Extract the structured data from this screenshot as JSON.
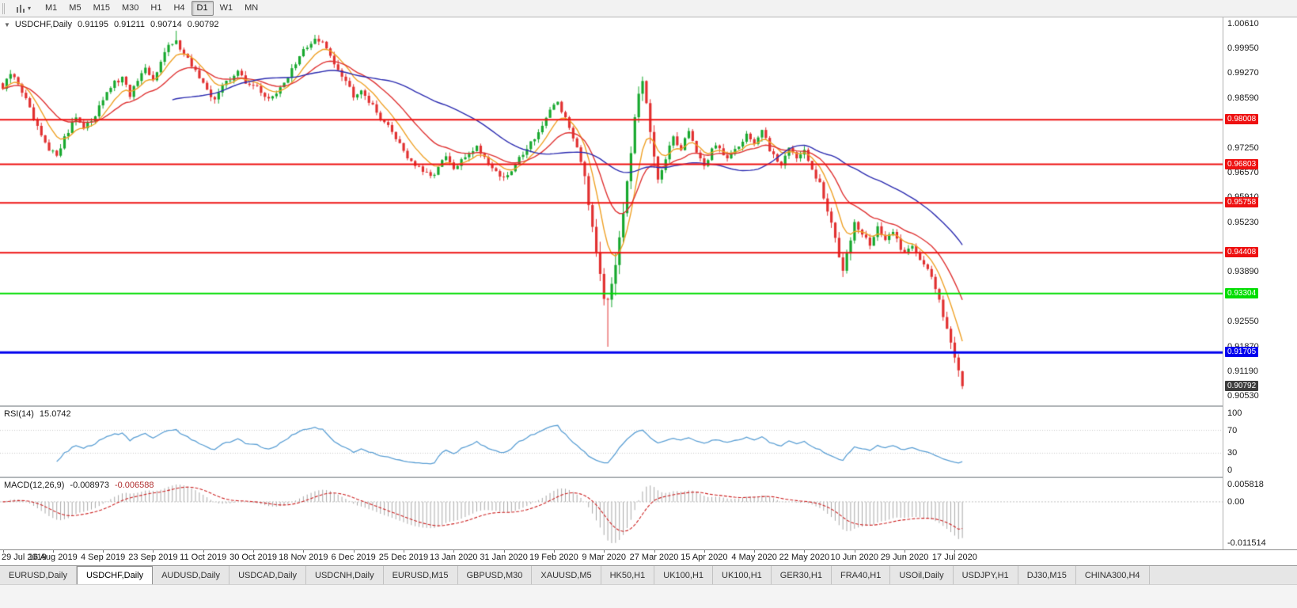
{
  "toolbar": {
    "timeframes": [
      "M1",
      "M5",
      "M15",
      "M30",
      "H1",
      "H4",
      "D1",
      "W1",
      "MN"
    ],
    "active_timeframe": "D1"
  },
  "chart": {
    "title": {
      "symbol": "USDCHF,Daily",
      "open": "0.91195",
      "high": "0.91211",
      "low": "0.90714",
      "close": "0.90792"
    },
    "price_axis": {
      "ticks": [
        "1.00610",
        "0.99950",
        "0.99270",
        "0.98590",
        "0.97250",
        "0.96570",
        "0.95910",
        "0.95230",
        "0.93890",
        "0.92550",
        "0.91870",
        "0.91190",
        "0.90530"
      ]
    },
    "date_axis": {
      "labels": [
        "29 Jul 2019",
        "16 Aug 2019",
        "4 Sep 2019",
        "23 Sep 2019",
        "11 Oct 2019",
        "30 Oct 2019",
        "18 Nov 2019",
        "6 Dec 2019",
        "25 Dec 2019",
        "13 Jan 2020",
        "31 Jan 2020",
        "19 Feb 2020",
        "9 Mar 2020",
        "27 Mar 2020",
        "15 Apr 2020",
        "4 May 2020",
        "22 May 2020",
        "10 Jun 2020",
        "29 Jun 2020",
        "17 Jul 2020"
      ]
    },
    "hlines": [
      {
        "label": "0.98008",
        "value": 0.98008,
        "color": "#ee1111",
        "width": 2
      },
      {
        "label": "0.96803",
        "value": 0.96803,
        "color": "#ee1111",
        "width": 2
      },
      {
        "label": "0.95758",
        "value": 0.95758,
        "color": "#ee1111",
        "width": 2
      },
      {
        "label": "0.94408",
        "value": 0.94408,
        "color": "#ee1111",
        "width": 2
      },
      {
        "label": "0.93304",
        "value": 0.93304,
        "color": "#00dd00",
        "width": 2
      },
      {
        "label": "0.91705",
        "value": 0.91705,
        "color": "#0000ee",
        "width": 3
      }
    ],
    "current_price": {
      "label": "0.90792",
      "value": 0.90792,
      "badge_color": "#3c3c3c"
    }
  },
  "indicators": {
    "rsi": {
      "title": "RSI(14)",
      "value": "15.0742",
      "axis_levels": [
        {
          "label": "100",
          "value": 100
        },
        {
          "label": "70",
          "value": 70
        },
        {
          "label": "30",
          "value": 30
        },
        {
          "label": "0",
          "value": 0
        }
      ]
    },
    "macd": {
      "title": "MACD(12,26,9)",
      "value_main": "-0.008973",
      "value_signal": "-0.006588",
      "axis_top": "0.005818",
      "axis_zero": "0.00",
      "axis_bottom": "-0.011514"
    }
  },
  "tabs": [
    {
      "label": "EURUSD,Daily",
      "active": false
    },
    {
      "label": "USDCHF,Daily",
      "active": true
    },
    {
      "label": "AUDUSD,Daily",
      "active": false
    },
    {
      "label": "USDCAD,Daily",
      "active": false
    },
    {
      "label": "USDCNH,Daily",
      "active": false
    },
    {
      "label": "EURUSD,M15",
      "active": false
    },
    {
      "label": "GBPUSD,M30",
      "active": false
    },
    {
      "label": "XAUUSD,M5",
      "active": false
    },
    {
      "label": "HK50,H1",
      "active": false
    },
    {
      "label": "UK100,H1",
      "active": false
    },
    {
      "label": "UK100,H1",
      "active": false
    },
    {
      "label": "GER30,H1",
      "active": false
    },
    {
      "label": "FRA40,H1",
      "active": false
    },
    {
      "label": "USOil,Daily",
      "active": false
    },
    {
      "label": "USDJPY,H1",
      "active": false
    },
    {
      "label": "DJ30,M15",
      "active": false
    },
    {
      "label": "CHINA300,H4",
      "active": false
    }
  ],
  "chart_data": {
    "type": "candlestick",
    "symbol": "USDCHF",
    "timeframe": "Daily",
    "candles_count": 250,
    "price_range": {
      "top": 1.0061,
      "bottom": 0.9053
    },
    "up_color": "#17a82e",
    "down_color": "#e13030",
    "last_candle": {
      "open": 0.91195,
      "high": 0.91211,
      "low": 0.90714,
      "close": 0.90792
    },
    "close_anchors": [
      [
        0,
        0.9885
      ],
      [
        2,
        0.9925
      ],
      [
        4,
        0.99
      ],
      [
        6,
        0.9855
      ],
      [
        8,
        0.98
      ],
      [
        10,
        0.9755
      ],
      [
        12,
        0.9715
      ],
      [
        14,
        0.9708
      ],
      [
        16,
        0.9752
      ],
      [
        19,
        0.9812
      ],
      [
        21,
        0.9775
      ],
      [
        23,
        0.98
      ],
      [
        26,
        0.9858
      ],
      [
        29,
        0.99
      ],
      [
        31,
        0.9912
      ],
      [
        33,
        0.9868
      ],
      [
        35,
        0.9905
      ],
      [
        37,
        0.9935
      ],
      [
        39,
        0.9905
      ],
      [
        41,
        0.9965
      ],
      [
        43,
        1.0
      ],
      [
        45,
        1.001
      ],
      [
        47,
        0.9985
      ],
      [
        49,
        0.9948
      ],
      [
        52,
        0.9895
      ],
      [
        55,
        0.9858
      ],
      [
        58,
        0.9905
      ],
      [
        61,
        0.9932
      ],
      [
        63,
        0.99
      ],
      [
        65,
        0.9895
      ],
      [
        68,
        0.9868
      ],
      [
        70,
        0.9858
      ],
      [
        73,
        0.9905
      ],
      [
        76,
        0.9948
      ],
      [
        78,
        0.999
      ],
      [
        81,
        1.0018
      ],
      [
        83,
        1.0008
      ],
      [
        85,
        0.9975
      ],
      [
        87,
        0.994
      ],
      [
        89,
        0.9908
      ],
      [
        91,
        0.9868
      ],
      [
        93,
        0.9885
      ],
      [
        95,
        0.9852
      ],
      [
        97,
        0.982
      ],
      [
        99,
        0.9795
      ],
      [
        101,
        0.9768
      ],
      [
        103,
        0.9738
      ],
      [
        105,
        0.97
      ],
      [
        107,
        0.9678
      ],
      [
        109,
        0.966
      ],
      [
        111,
        0.9645
      ],
      [
        113,
        0.9672
      ],
      [
        115,
        0.97
      ],
      [
        117,
        0.9665
      ],
      [
        119,
        0.9688
      ],
      [
        121,
        0.9712
      ],
      [
        123,
        0.9728
      ],
      [
        125,
        0.97
      ],
      [
        127,
        0.9672
      ],
      [
        129,
        0.965
      ],
      [
        131,
        0.9645
      ],
      [
        133,
        0.968
      ],
      [
        135,
        0.9712
      ],
      [
        137,
        0.974
      ],
      [
        139,
        0.9768
      ],
      [
        141,
        0.98
      ],
      [
        143,
        0.9842
      ],
      [
        144,
        0.985
      ],
      [
        146,
        0.9802
      ],
      [
        148,
        0.9755
      ],
      [
        150,
        0.97
      ],
      [
        151,
        0.9655
      ],
      [
        153,
        0.952
      ],
      [
        155,
        0.9395
      ],
      [
        156,
        0.933
      ],
      [
        157,
        0.9295
      ],
      [
        158,
        0.936
      ],
      [
        159,
        0.942
      ],
      [
        160,
        0.95
      ],
      [
        161,
        0.9558
      ],
      [
        162,
        0.9645
      ],
      [
        163,
        0.97
      ],
      [
        164,
        0.979
      ],
      [
        165,
        0.9855
      ],
      [
        166,
        0.9898
      ],
      [
        167,
        0.984
      ],
      [
        168,
        0.976
      ],
      [
        169,
        0.97
      ],
      [
        170,
        0.9642
      ],
      [
        172,
        0.969
      ],
      [
        174,
        0.9758
      ],
      [
        176,
        0.9718
      ],
      [
        178,
        0.9775
      ],
      [
        180,
        0.9712
      ],
      [
        182,
        0.968
      ],
      [
        185,
        0.9735
      ],
      [
        188,
        0.9692
      ],
      [
        191,
        0.973
      ],
      [
        193,
        0.9765
      ],
      [
        195,
        0.9738
      ],
      [
        197,
        0.9772
      ],
      [
        199,
        0.9718
      ],
      [
        202,
        0.9682
      ],
      [
        204,
        0.9725
      ],
      [
        206,
        0.97
      ],
      [
        208,
        0.9715
      ],
      [
        210,
        0.9662
      ],
      [
        212,
        0.9625
      ],
      [
        214,
        0.9552
      ],
      [
        216,
        0.9478
      ],
      [
        218,
        0.94
      ],
      [
        219,
        0.9452
      ],
      [
        221,
        0.9518
      ],
      [
        223,
        0.949
      ],
      [
        225,
        0.9462
      ],
      [
        227,
        0.9512
      ],
      [
        229,
        0.9468
      ],
      [
        231,
        0.9502
      ],
      [
        233,
        0.9452
      ],
      [
        234,
        0.944
      ],
      [
        236,
        0.9465
      ],
      [
        238,
        0.9425
      ],
      [
        240,
        0.9392
      ],
      [
        241,
        0.9372
      ],
      [
        243,
        0.9312
      ],
      [
        245,
        0.9242
      ],
      [
        246,
        0.9205
      ],
      [
        247,
        0.9152
      ],
      [
        248,
        0.9122
      ],
      [
        249,
        0.90792
      ]
    ],
    "forced_lows": [
      {
        "range": [
          150,
          162
        ],
        "low": 0.9186
      },
      {
        "range": [
          212,
          222
        ],
        "low": 0.9378
      }
    ],
    "forced_highs": [
      {
        "range": [
          41,
          48
        ],
        "high": 1.0042
      },
      {
        "range": [
          78,
          84
        ],
        "high": 1.0031
      },
      {
        "range": [
          163,
          167
        ],
        "high": 0.9918
      }
    ],
    "moving_averages": [
      {
        "name": "fast",
        "method": "ema",
        "period": 8,
        "color": "#efa126"
      },
      {
        "name": "medium",
        "method": "ema",
        "period": 20,
        "color": "#df3333"
      },
      {
        "name": "slow",
        "method": "sma",
        "period": 45,
        "color": "#2c2cb0"
      }
    ],
    "rsi": {
      "period": 14,
      "last_value": 15.0742,
      "range": [
        0,
        100
      ],
      "levels": [
        30,
        70
      ],
      "color": "#5b9fd4"
    },
    "macd": {
      "fast": 12,
      "slow": 26,
      "signal": 9,
      "last_main": -0.008973,
      "last_signal": -0.006588,
      "histogram_color": "#a8a8a8",
      "signal_color": "#cc2222"
    }
  }
}
